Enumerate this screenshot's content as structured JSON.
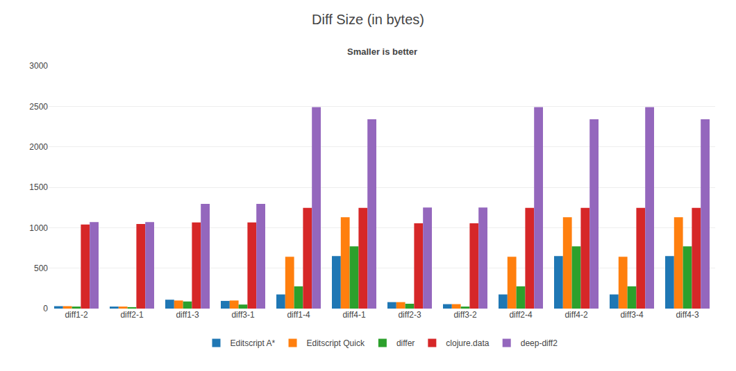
{
  "chart_data": {
    "type": "bar",
    "title": "Diff Size (in bytes)",
    "subtitle": "Smaller is better",
    "categories": [
      "diff1-2",
      "diff2-1",
      "diff1-3",
      "diff3-1",
      "diff1-4",
      "diff4-1",
      "diff2-3",
      "diff3-2",
      "diff2-4",
      "diff4-2",
      "diff3-4",
      "diff4-3"
    ],
    "series": [
      {
        "name": "Editscript A*",
        "values": [
          30,
          25,
          110,
          95,
          175,
          650,
          80,
          55,
          175,
          650,
          175,
          650
        ]
      },
      {
        "name": "Editscript Quick",
        "values": [
          30,
          25,
          100,
          100,
          640,
          1130,
          80,
          55,
          640,
          1130,
          640,
          1130
        ]
      },
      {
        "name": "differ",
        "values": [
          25,
          18,
          88,
          50,
          275,
          770,
          60,
          25,
          275,
          770,
          275,
          770
        ]
      },
      {
        "name": "clojure.data",
        "values": [
          1040,
          1045,
          1065,
          1065,
          1245,
          1245,
          1055,
          1055,
          1245,
          1245,
          1245,
          1245
        ]
      },
      {
        "name": "deep-diff2",
        "values": [
          1070,
          1070,
          1295,
          1295,
          2490,
          2340,
          1250,
          1250,
          2490,
          2340,
          2490,
          2340
        ]
      }
    ],
    "ylim": [
      0,
      3000
    ],
    "yticks": [
      0,
      500,
      1000,
      1500,
      2000,
      2500,
      3000
    ],
    "grid": true,
    "legend": "bottom"
  }
}
